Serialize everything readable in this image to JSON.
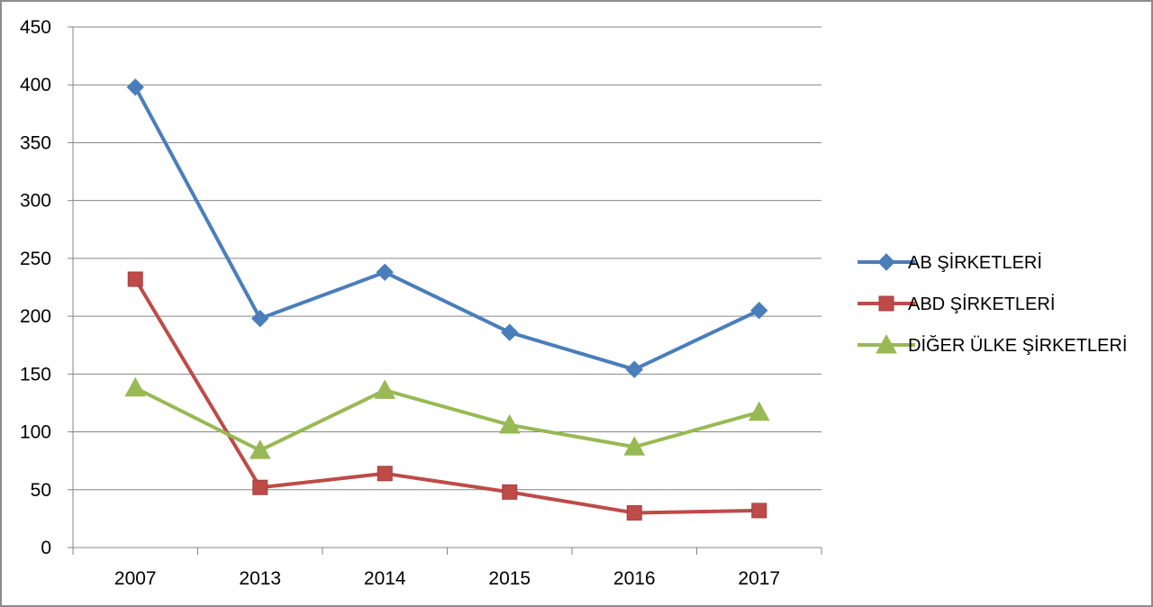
{
  "chart_data": {
    "type": "line",
    "categories": [
      "2007",
      "2013",
      "2014",
      "2015",
      "2016",
      "2017"
    ],
    "ylim": [
      0,
      450
    ],
    "yticks": [
      0,
      50,
      100,
      150,
      200,
      250,
      300,
      350,
      400,
      450
    ],
    "grid": true,
    "legend_position": "right",
    "series": [
      {
        "name": "AB ŞİRKETLERİ",
        "values": [
          398,
          198,
          238,
          186,
          154,
          205
        ],
        "color": "#4a7ebb",
        "marker": "diamond"
      },
      {
        "name": "ABD ŞİRKETLERİ",
        "values": [
          232,
          52,
          64,
          48,
          30,
          32
        ],
        "color": "#be4b48",
        "marker": "square"
      },
      {
        "name": "DİĞER ÜLKE ŞİRKETLERİ",
        "values": [
          138,
          84,
          136,
          106,
          87,
          117
        ],
        "color": "#98b954",
        "marker": "triangle"
      }
    ]
  }
}
